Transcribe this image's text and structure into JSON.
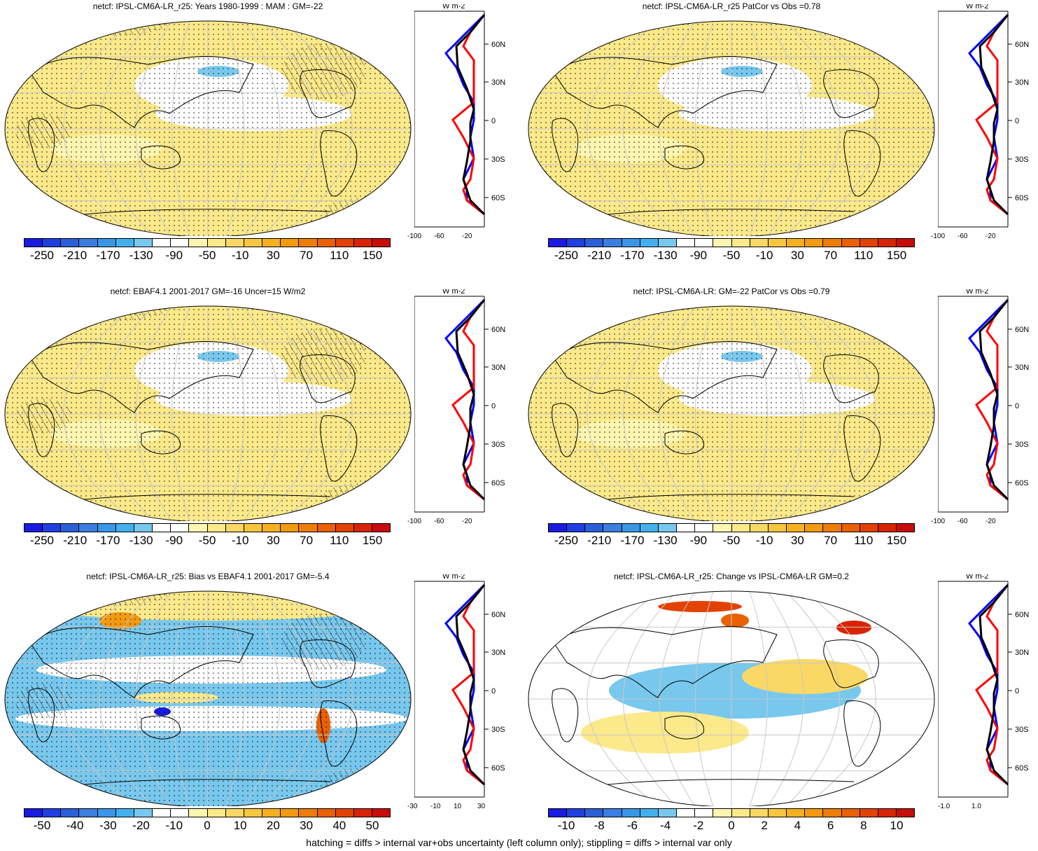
{
  "panels": [
    {
      "title": "netcf: IPSL-CM6A-LR_r25: Years 1980-1999 : MAM : GM=-22",
      "type": "mean"
    },
    {
      "title": "netcf: IPSL-CM6A-LR_r25 PatCor vs Obs =0.78",
      "type": "mean"
    },
    {
      "title": "netcf: EBAF4.1 2001-2017 GM=-16 Uncer=15 W/m2",
      "type": "mean"
    },
    {
      "title": "netcf: IPSL-CM6A-LR: GM=-22 PatCor vs Obs =0.79",
      "type": "mean"
    },
    {
      "title": "netcf: IPSL-CM6A-LR_r25: Bias vs EBAF4.1 2001-2017 GM=-5.4",
      "type": "bias"
    },
    {
      "title": "netcf: IPSL-CM6A-LR_r25: Change vs IPSL-CM6A-LR GM=0.2",
      "type": "change"
    }
  ],
  "colorbars": {
    "mean": {
      "labels": [
        "-250",
        "-210",
        "-170",
        "-130",
        "-90",
        "-50",
        "-10",
        "30",
        "70",
        "110",
        "150"
      ],
      "colors": [
        "#1a1ae0",
        "#1f3fe0",
        "#2a5fd8",
        "#3c7ee0",
        "#3a96e6",
        "#43b0ee",
        "#78c8ee",
        "#ffffff",
        "#ffffff",
        "#fdf6b0",
        "#fbe98a",
        "#f9d865",
        "#f7c640",
        "#f5b020",
        "#f29a10",
        "#ee7d08",
        "#e96005",
        "#e24204",
        "#d82404",
        "#c80c0a"
      ]
    },
    "bias": {
      "labels": [
        "-50",
        "-40",
        "-30",
        "-20",
        "-10",
        "0",
        "10",
        "20",
        "30",
        "40",
        "50"
      ],
      "colors": [
        "#1a1ae0",
        "#1f3fe0",
        "#2a5fd8",
        "#3c7ee0",
        "#3a96e6",
        "#43b0ee",
        "#78c8ee",
        "#ffffff",
        "#ffffff",
        "#fdf6b0",
        "#fbe98a",
        "#f9d865",
        "#f7c640",
        "#f5b020",
        "#f29a10",
        "#ee7d08",
        "#e96005",
        "#e24204",
        "#d82404",
        "#c80c0a"
      ]
    },
    "change": {
      "labels": [
        "-10",
        "-8",
        "-6",
        "-4",
        "-2",
        "0",
        "2",
        "4",
        "6",
        "8",
        "10"
      ],
      "colors": [
        "#1a1ae0",
        "#1f3fe0",
        "#2a5fd8",
        "#3c7ee0",
        "#3a96e6",
        "#43b0ee",
        "#78c8ee",
        "#ffffff",
        "#ffffff",
        "#fdf6b0",
        "#fbe98a",
        "#f9d865",
        "#f7c640",
        "#f5b020",
        "#f29a10",
        "#ee7d08",
        "#e96005",
        "#e24204",
        "#d82404",
        "#c80c0a"
      ]
    }
  },
  "profile": {
    "unit": "W m-2",
    "lat_labels": [
      "60N",
      "30N",
      "0",
      "30S",
      "60S"
    ],
    "x_mean": [
      "-100",
      "-60",
      "-20"
    ],
    "x_bias": [
      "-30",
      "-10",
      "10",
      "30"
    ],
    "x_change": [
      "-1.0",
      "1.0"
    ],
    "series_colors": {
      "model": "#ff0000",
      "obs": "#0000ff",
      "ref": "#000000"
    }
  },
  "footnote": "hatching = diffs > internal var+obs uncertainty (left column only); stippling = diffs > internal var only"
}
